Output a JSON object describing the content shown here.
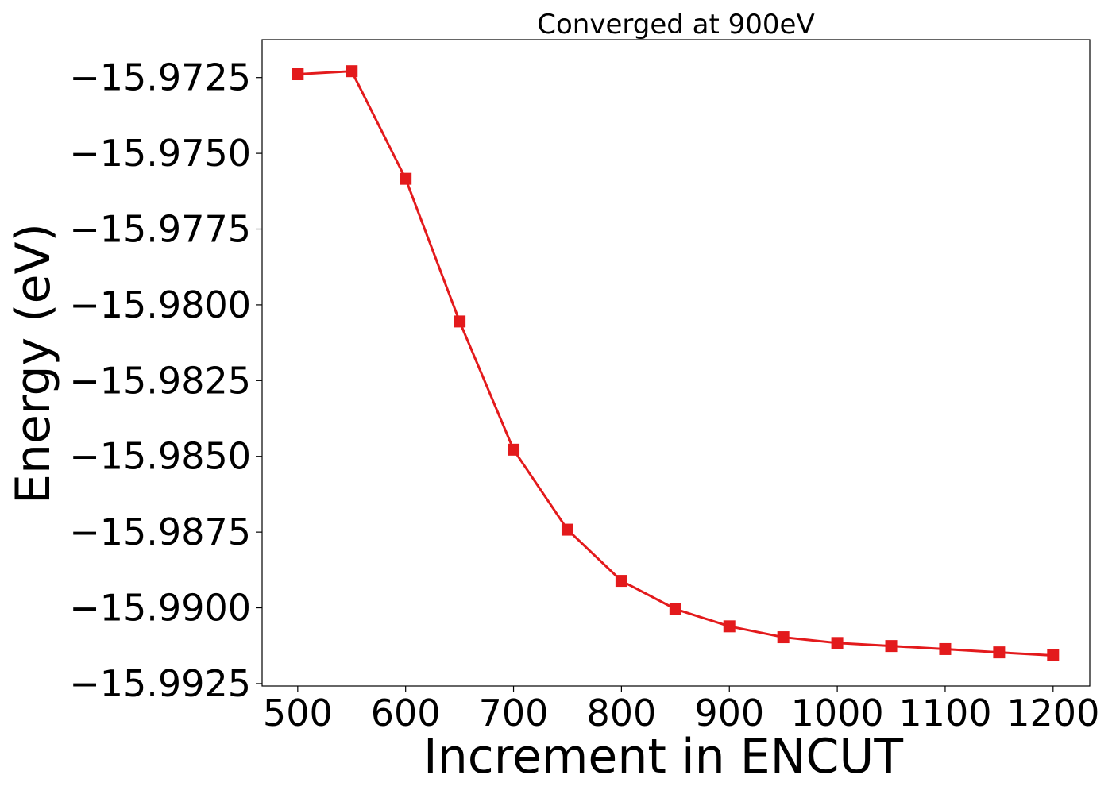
{
  "chart_data": {
    "type": "line",
    "title": "Converged at 900eV",
    "xlabel": "Increment in ENCUT",
    "ylabel": "Energy (eV)",
    "x": [
      500,
      550,
      600,
      650,
      700,
      750,
      800,
      850,
      900,
      950,
      1000,
      1050,
      1100,
      1150,
      1200
    ],
    "series": [
      {
        "values": [
          -15.97239,
          -15.97229,
          -15.97584,
          -15.98055,
          -15.98478,
          -15.98742,
          -15.98911,
          -15.99004,
          -15.99061,
          -15.99097,
          -15.99116,
          -15.99126,
          -15.99136,
          -15.99147,
          -15.99157
        ],
        "color": "#e31a1c",
        "marker": "square"
      }
    ],
    "xlim": [
      467,
      1234
    ],
    "ylim": [
      -15.99258,
      -15.97125
    ],
    "xticks": [
      500,
      600,
      700,
      800,
      900,
      1000,
      1100,
      1200
    ],
    "xtick_labels": [
      "500",
      "600",
      "700",
      "800",
      "900",
      "1000",
      "1100",
      "1200"
    ],
    "yticks": [
      -15.9725,
      -15.975,
      -15.9775,
      -15.98,
      -15.9825,
      -15.985,
      -15.9875,
      -15.99,
      -15.9925
    ],
    "ytick_labels": [
      "−15.9725",
      "−15.9750",
      "−15.9775",
      "−15.9800",
      "−15.9825",
      "−15.9850",
      "−15.9875",
      "−15.9900",
      "−15.9925"
    ],
    "grid": false,
    "legend": false
  }
}
